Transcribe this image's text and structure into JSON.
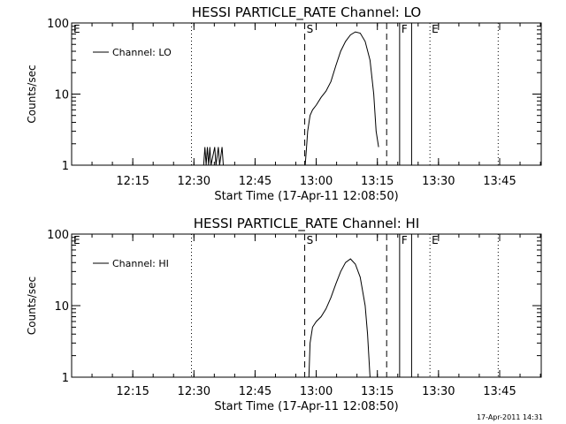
{
  "chart_data": [
    {
      "type": "line",
      "title": "HESSI PARTICLE_RATE Channel: LO",
      "xlabel": "Start Time (17-Apr-11 12:08:50)",
      "ylabel": "Counts/sec",
      "yscale": "log",
      "ylim": [
        1,
        100
      ],
      "xlim_minutes": [
        12.0,
        13.92
      ],
      "x_ticks": [
        "12:15",
        "12:30",
        "12:45",
        "13:00",
        "13:15",
        "13:30",
        "13:45"
      ],
      "x_tick_values": [
        12.25,
        12.5,
        12.75,
        13.0,
        13.25,
        13.5,
        13.75
      ],
      "y_ticks": [
        "1",
        "10",
        "100"
      ],
      "y_tick_values": [
        1,
        10,
        100
      ],
      "legend": "Channel: LO",
      "series": [
        {
          "name": "Channel: LO",
          "points": [
            [
              12.54,
              1.0
            ],
            [
              12.545,
              1.8
            ],
            [
              12.55,
              1.0
            ],
            [
              12.555,
              1.8
            ],
            [
              12.56,
              1.0
            ],
            [
              12.565,
              1.8
            ],
            [
              12.57,
              1.0
            ],
            [
              12.585,
              1.8
            ],
            [
              12.59,
              1.0
            ],
            [
              12.6,
              1.8
            ],
            [
              12.605,
              1.0
            ],
            [
              12.615,
              1.8
            ],
            [
              12.62,
              1.0
            ],
            null,
            [
              12.955,
              1.0
            ],
            [
              12.96,
              1.7
            ],
            [
              12.965,
              3.0
            ],
            [
              12.975,
              5.0
            ],
            [
              12.985,
              6.0
            ],
            [
              13.0,
              7.0
            ],
            [
              13.02,
              9.0
            ],
            [
              13.04,
              11.0
            ],
            [
              13.06,
              15.0
            ],
            [
              13.08,
              25.0
            ],
            [
              13.1,
              40.0
            ],
            [
              13.12,
              55.0
            ],
            [
              13.14,
              68.0
            ],
            [
              13.16,
              75.0
            ],
            [
              13.18,
              72.0
            ],
            [
              13.2,
              55.0
            ],
            [
              13.22,
              30.0
            ],
            [
              13.235,
              10.0
            ],
            [
              13.245,
              3.0
            ],
            [
              13.255,
              1.8
            ]
          ]
        }
      ],
      "vertical_markers": [
        {
          "label": "E",
          "x": 12.0,
          "style": "dotted"
        },
        {
          "label": "",
          "x": 12.49,
          "style": "dotted"
        },
        {
          "label": "S",
          "x": 12.953,
          "style": "dashed"
        },
        {
          "label": "",
          "x": 13.288,
          "style": "dashed"
        },
        {
          "label": "F",
          "x": 13.341,
          "style": "solid"
        },
        {
          "label": "",
          "x": 13.39,
          "style": "solid"
        },
        {
          "label": "E",
          "x": 13.465,
          "style": "dotted"
        },
        {
          "label": "",
          "x": 13.744,
          "style": "dotted"
        }
      ]
    },
    {
      "type": "line",
      "title": "HESSI PARTICLE_RATE Channel: HI",
      "xlabel": "Start Time (17-Apr-11 12:08:50)",
      "ylabel": "Counts/sec",
      "yscale": "log",
      "ylim": [
        1,
        100
      ],
      "xlim_minutes": [
        12.0,
        13.92
      ],
      "x_ticks": [
        "12:15",
        "12:30",
        "12:45",
        "13:00",
        "13:15",
        "13:30",
        "13:45"
      ],
      "x_tick_values": [
        12.25,
        12.5,
        12.75,
        13.0,
        13.25,
        13.5,
        13.75
      ],
      "y_ticks": [
        "1",
        "10",
        "100"
      ],
      "y_tick_values": [
        1,
        10,
        100
      ],
      "legend": "Channel: HI",
      "series": [
        {
          "name": "Channel: HI",
          "points": [
            [
              12.97,
              1.0
            ],
            [
              12.975,
              3.0
            ],
            [
              12.985,
              5.0
            ],
            [
              13.0,
              6.0
            ],
            [
              13.02,
              7.0
            ],
            [
              13.04,
              9.0
            ],
            [
              13.06,
              13.0
            ],
            [
              13.08,
              20.0
            ],
            [
              13.1,
              30.0
            ],
            [
              13.12,
              40.0
            ],
            [
              13.14,
              45.0
            ],
            [
              13.16,
              38.0
            ],
            [
              13.18,
              25.0
            ],
            [
              13.2,
              10.0
            ],
            [
              13.21,
              4.0
            ],
            [
              13.22,
              1.0
            ]
          ]
        }
      ],
      "vertical_markers": [
        {
          "label": "E",
          "x": 12.0,
          "style": "dotted"
        },
        {
          "label": "",
          "x": 12.49,
          "style": "dotted"
        },
        {
          "label": "S",
          "x": 12.953,
          "style": "dashed"
        },
        {
          "label": "",
          "x": 13.288,
          "style": "dashed"
        },
        {
          "label": "F",
          "x": 13.341,
          "style": "solid"
        },
        {
          "label": "",
          "x": 13.39,
          "style": "solid"
        },
        {
          "label": "E",
          "x": 13.465,
          "style": "dotted"
        },
        {
          "label": "",
          "x": 13.744,
          "style": "dotted"
        }
      ]
    }
  ],
  "footer": {
    "timestamp": "17-Apr-2011 14:31"
  }
}
